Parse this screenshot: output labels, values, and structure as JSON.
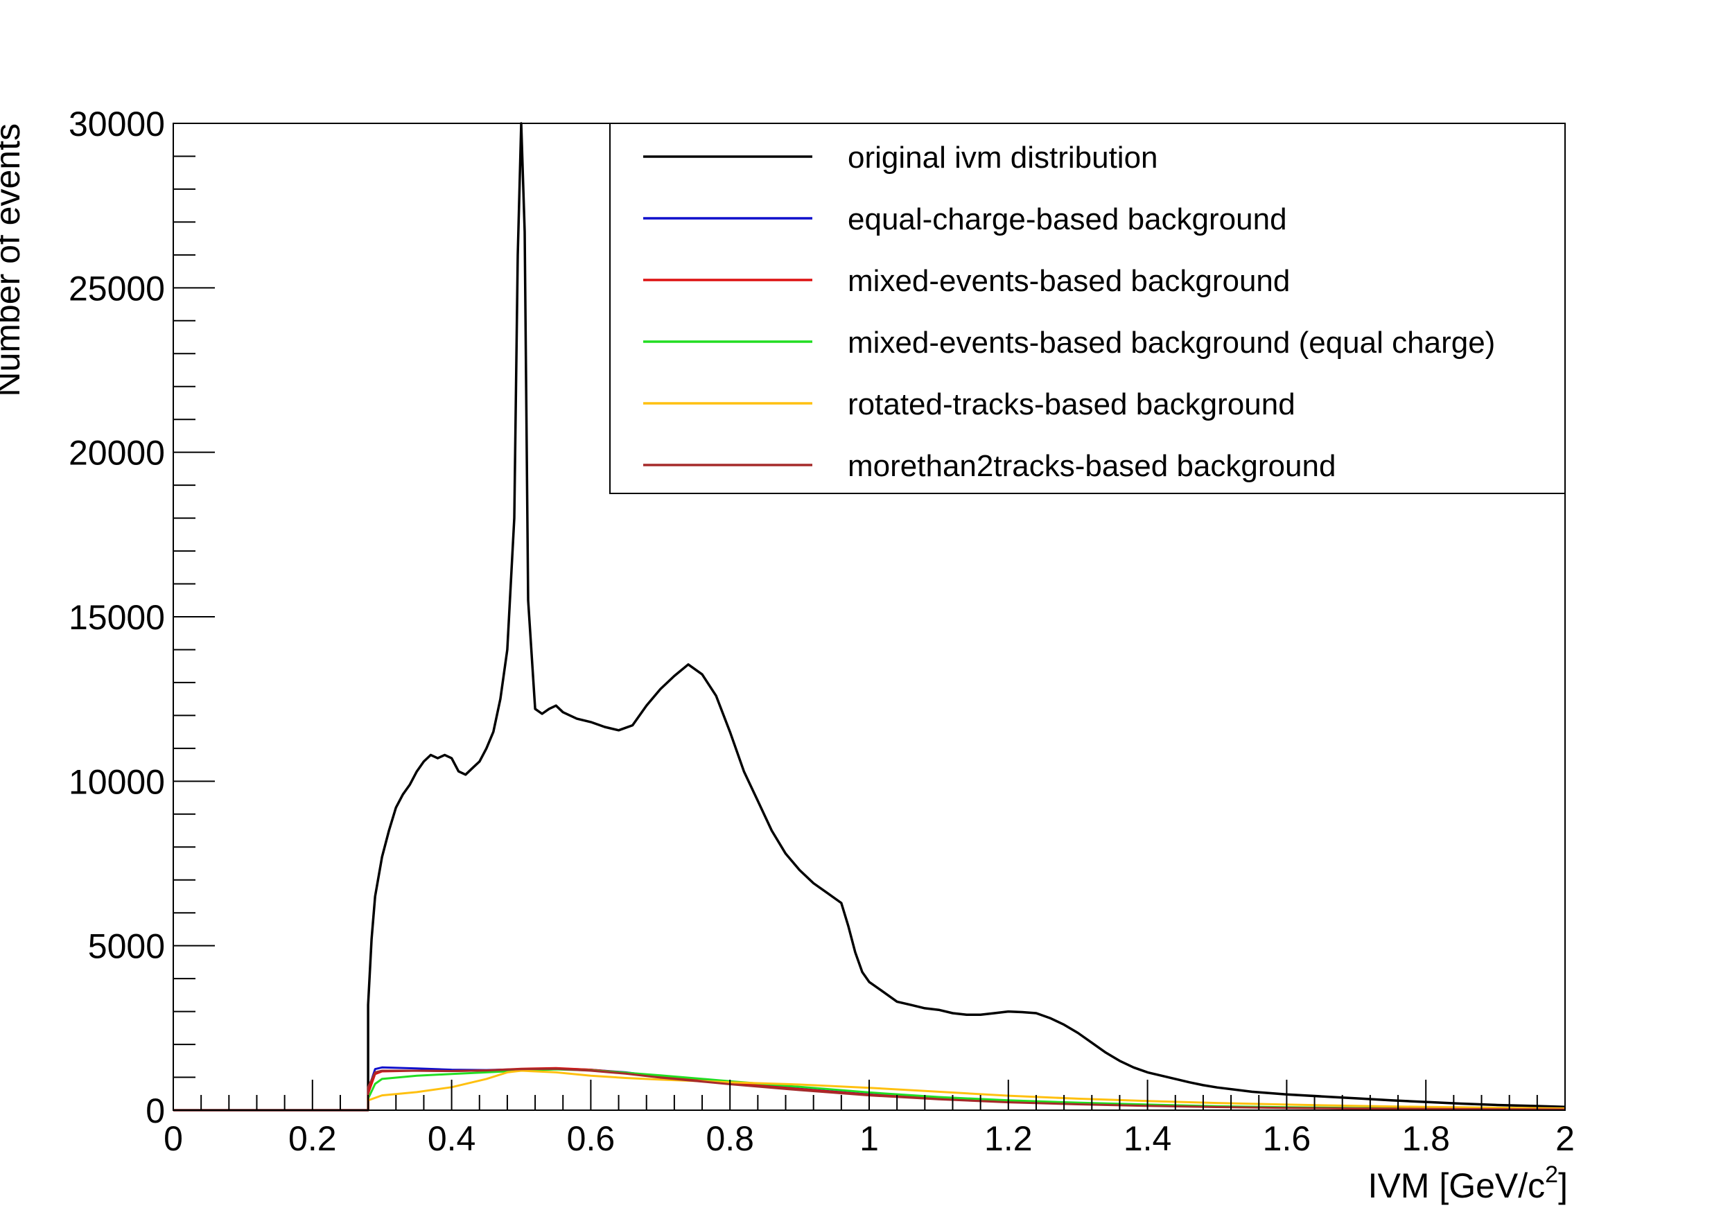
{
  "chart_data": {
    "type": "line",
    "title": "",
    "xlabel": "IVM [GeV/c",
    "xlabel_sup": "2",
    "xlabel_close": "]",
    "ylabel": "Number of events",
    "xlim": [
      0,
      2
    ],
    "ylim": [
      0,
      30000
    ],
    "x_ticks": [
      {
        "value": 0,
        "label": "0"
      },
      {
        "value": 0.2,
        "label": "0.2"
      },
      {
        "value": 0.4,
        "label": "0.4"
      },
      {
        "value": 0.6,
        "label": "0.6"
      },
      {
        "value": 0.8,
        "label": "0.8"
      },
      {
        "value": 1.0,
        "label": "1"
      },
      {
        "value": 1.2,
        "label": "1.2"
      },
      {
        "value": 1.4,
        "label": "1.4"
      },
      {
        "value": 1.6,
        "label": "1.6"
      },
      {
        "value": 1.8,
        "label": "1.8"
      },
      {
        "value": 2.0,
        "label": "2"
      }
    ],
    "y_ticks": [
      {
        "value": 0,
        "label": "0"
      },
      {
        "value": 5000,
        "label": "5000"
      },
      {
        "value": 10000,
        "label": "10000"
      },
      {
        "value": 15000,
        "label": "15000"
      },
      {
        "value": 20000,
        "label": "20000"
      },
      {
        "value": 25000,
        "label": "25000"
      },
      {
        "value": 30000,
        "label": "30000"
      }
    ],
    "grid": false,
    "legend_position": "top-right",
    "series": [
      {
        "name": "original ivm distribution",
        "color": "#000000",
        "points": [
          [
            0,
            0
          ],
          [
            0.27,
            0
          ],
          [
            0.28,
            0
          ],
          [
            0.28,
            3200
          ],
          [
            0.285,
            5200
          ],
          [
            0.29,
            6500
          ],
          [
            0.3,
            7700
          ],
          [
            0.31,
            8500
          ],
          [
            0.32,
            9200
          ],
          [
            0.33,
            9600
          ],
          [
            0.34,
            9900
          ],
          [
            0.35,
            10300
          ],
          [
            0.36,
            10600
          ],
          [
            0.37,
            10800
          ],
          [
            0.38,
            10700
          ],
          [
            0.39,
            10800
          ],
          [
            0.4,
            10700
          ],
          [
            0.41,
            10300
          ],
          [
            0.42,
            10200
          ],
          [
            0.43,
            10400
          ],
          [
            0.44,
            10600
          ],
          [
            0.45,
            11000
          ],
          [
            0.46,
            11500
          ],
          [
            0.47,
            12500
          ],
          [
            0.48,
            14000
          ],
          [
            0.49,
            18000
          ],
          [
            0.495,
            26000
          ],
          [
            0.5,
            30000
          ],
          [
            0.505,
            26700
          ],
          [
            0.51,
            15500
          ],
          [
            0.52,
            12200
          ],
          [
            0.53,
            12050
          ],
          [
            0.54,
            12200
          ],
          [
            0.55,
            12300
          ],
          [
            0.56,
            12100
          ],
          [
            0.57,
            12000
          ],
          [
            0.58,
            11900
          ],
          [
            0.6,
            11800
          ],
          [
            0.62,
            11650
          ],
          [
            0.64,
            11550
          ],
          [
            0.66,
            11700
          ],
          [
            0.68,
            12300
          ],
          [
            0.7,
            12800
          ],
          [
            0.72,
            13200
          ],
          [
            0.74,
            13550
          ],
          [
            0.76,
            13250
          ],
          [
            0.78,
            12600
          ],
          [
            0.8,
            11500
          ],
          [
            0.82,
            10300
          ],
          [
            0.84,
            9400
          ],
          [
            0.86,
            8500
          ],
          [
            0.88,
            7800
          ],
          [
            0.9,
            7300
          ],
          [
            0.92,
            6900
          ],
          [
            0.94,
            6600
          ],
          [
            0.96,
            6300
          ],
          [
            0.97,
            5600
          ],
          [
            0.98,
            4800
          ],
          [
            0.99,
            4200
          ],
          [
            1.0,
            3900
          ],
          [
            1.02,
            3600
          ],
          [
            1.04,
            3300
          ],
          [
            1.06,
            3200
          ],
          [
            1.08,
            3100
          ],
          [
            1.1,
            3050
          ],
          [
            1.12,
            2950
          ],
          [
            1.14,
            2900
          ],
          [
            1.16,
            2900
          ],
          [
            1.18,
            2950
          ],
          [
            1.2,
            3000
          ],
          [
            1.22,
            2980
          ],
          [
            1.24,
            2950
          ],
          [
            1.26,
            2800
          ],
          [
            1.28,
            2600
          ],
          [
            1.3,
            2350
          ],
          [
            1.32,
            2050
          ],
          [
            1.34,
            1750
          ],
          [
            1.36,
            1500
          ],
          [
            1.38,
            1300
          ],
          [
            1.4,
            1150
          ],
          [
            1.42,
            1050
          ],
          [
            1.44,
            950
          ],
          [
            1.46,
            850
          ],
          [
            1.48,
            760
          ],
          [
            1.5,
            690
          ],
          [
            1.55,
            560
          ],
          [
            1.6,
            480
          ],
          [
            1.65,
            420
          ],
          [
            1.7,
            360
          ],
          [
            1.75,
            300
          ],
          [
            1.8,
            250
          ],
          [
            1.85,
            200
          ],
          [
            1.9,
            160
          ],
          [
            1.95,
            130
          ],
          [
            2.0,
            100
          ]
        ]
      },
      {
        "name": "equal-charge-based background",
        "color": "#1010cc",
        "points": [
          [
            0,
            0
          ],
          [
            0.28,
            0
          ],
          [
            0.28,
            600
          ],
          [
            0.29,
            1250
          ],
          [
            0.3,
            1300
          ],
          [
            0.35,
            1270
          ],
          [
            0.4,
            1230
          ],
          [
            0.45,
            1220
          ],
          [
            0.5,
            1250
          ],
          [
            0.55,
            1270
          ],
          [
            0.6,
            1230
          ],
          [
            0.65,
            1150
          ],
          [
            0.7,
            1020
          ],
          [
            0.8,
            830
          ],
          [
            0.9,
            650
          ],
          [
            1.0,
            480
          ],
          [
            1.1,
            350
          ],
          [
            1.2,
            260
          ],
          [
            1.3,
            200
          ],
          [
            1.4,
            150
          ],
          [
            1.5,
            110
          ],
          [
            1.6,
            80
          ],
          [
            1.7,
            60
          ],
          [
            1.8,
            45
          ],
          [
            1.9,
            35
          ],
          [
            2.0,
            25
          ]
        ]
      },
      {
        "name": "mixed-events-based background",
        "color": "#dd1111",
        "points": [
          [
            0,
            0
          ],
          [
            0.28,
            0
          ],
          [
            0.28,
            500
          ],
          [
            0.29,
            1100
          ],
          [
            0.3,
            1180
          ],
          [
            0.35,
            1200
          ],
          [
            0.4,
            1190
          ],
          [
            0.45,
            1210
          ],
          [
            0.5,
            1260
          ],
          [
            0.55,
            1280
          ],
          [
            0.6,
            1230
          ],
          [
            0.65,
            1140
          ],
          [
            0.7,
            1020
          ],
          [
            0.8,
            820
          ],
          [
            0.9,
            640
          ],
          [
            1.0,
            470
          ],
          [
            1.1,
            340
          ],
          [
            1.2,
            250
          ],
          [
            1.3,
            190
          ],
          [
            1.4,
            140
          ],
          [
            1.5,
            100
          ],
          [
            1.6,
            75
          ],
          [
            1.7,
            55
          ],
          [
            1.8,
            42
          ],
          [
            1.9,
            32
          ],
          [
            2.0,
            24
          ]
        ]
      },
      {
        "name": "mixed-events-based background (equal charge)",
        "color": "#22dd22",
        "points": [
          [
            0,
            0
          ],
          [
            0.28,
            0
          ],
          [
            0.28,
            350
          ],
          [
            0.29,
            800
          ],
          [
            0.3,
            950
          ],
          [
            0.35,
            1050
          ],
          [
            0.4,
            1100
          ],
          [
            0.45,
            1150
          ],
          [
            0.5,
            1200
          ],
          [
            0.55,
            1240
          ],
          [
            0.6,
            1210
          ],
          [
            0.65,
            1140
          ],
          [
            0.7,
            1060
          ],
          [
            0.8,
            880
          ],
          [
            0.9,
            710
          ],
          [
            1.0,
            540
          ],
          [
            1.1,
            400
          ],
          [
            1.2,
            300
          ],
          [
            1.3,
            230
          ],
          [
            1.4,
            170
          ],
          [
            1.5,
            120
          ],
          [
            1.6,
            90
          ],
          [
            1.7,
            65
          ],
          [
            1.8,
            50
          ],
          [
            1.9,
            38
          ],
          [
            2.0,
            28
          ]
        ]
      },
      {
        "name": "rotated-tracks-based background",
        "color": "#ffc010",
        "points": [
          [
            0,
            0
          ],
          [
            0.28,
            0
          ],
          [
            0.28,
            300
          ],
          [
            0.3,
            450
          ],
          [
            0.35,
            550
          ],
          [
            0.4,
            700
          ],
          [
            0.45,
            950
          ],
          [
            0.48,
            1150
          ],
          [
            0.5,
            1200
          ],
          [
            0.55,
            1150
          ],
          [
            0.6,
            1050
          ],
          [
            0.65,
            980
          ],
          [
            0.7,
            930
          ],
          [
            0.8,
            850
          ],
          [
            0.9,
            780
          ],
          [
            1.0,
            680
          ],
          [
            1.1,
            560
          ],
          [
            1.2,
            440
          ],
          [
            1.3,
            350
          ],
          [
            1.4,
            280
          ],
          [
            1.5,
            220
          ],
          [
            1.6,
            170
          ],
          [
            1.7,
            130
          ],
          [
            1.8,
            100
          ],
          [
            1.9,
            75
          ],
          [
            2.0,
            55
          ]
        ]
      },
      {
        "name": "morethan2tracks-based background",
        "color": "#a52a2a",
        "points": [
          [
            0,
            0
          ],
          [
            0.28,
            0
          ],
          [
            0.28,
            700
          ],
          [
            0.29,
            1150
          ],
          [
            0.3,
            1200
          ],
          [
            0.35,
            1200
          ],
          [
            0.4,
            1190
          ],
          [
            0.45,
            1210
          ],
          [
            0.5,
            1250
          ],
          [
            0.55,
            1260
          ],
          [
            0.6,
            1200
          ],
          [
            0.65,
            1110
          ],
          [
            0.7,
            990
          ],
          [
            0.8,
            790
          ],
          [
            0.9,
            610
          ],
          [
            1.0,
            450
          ],
          [
            1.1,
            330
          ],
          [
            1.2,
            240
          ],
          [
            1.3,
            180
          ],
          [
            1.4,
            130
          ],
          [
            1.5,
            95
          ],
          [
            1.6,
            70
          ],
          [
            1.7,
            52
          ],
          [
            1.8,
            40
          ],
          [
            1.9,
            30
          ],
          [
            2.0,
            22
          ]
        ]
      }
    ]
  }
}
